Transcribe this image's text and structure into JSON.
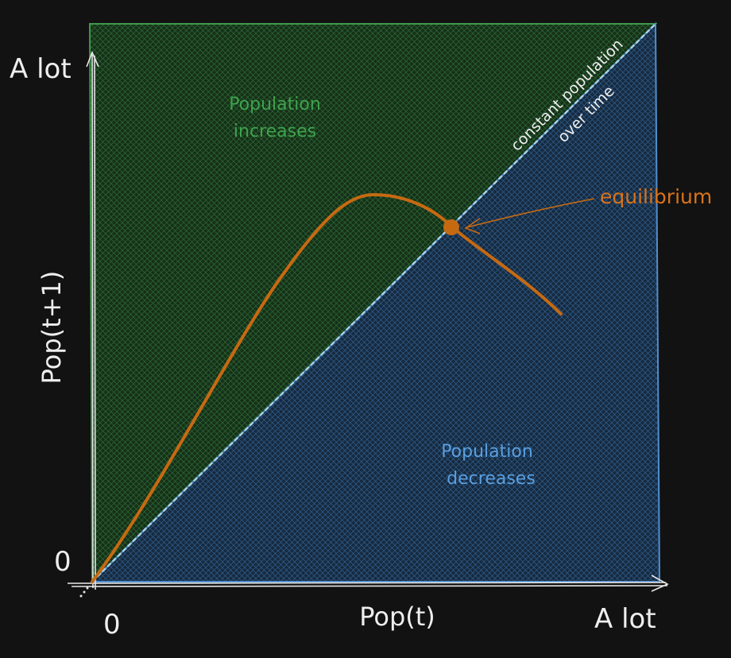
{
  "colors": {
    "background": "#121212",
    "green_region": "#1a3a1f",
    "green_edge": "#3f9a4b",
    "blue_region": "#1b2f47",
    "blue_edge": "#4f8fd0",
    "curve": "#c66a12",
    "diagonal": "#9ec8e0",
    "axis": "#e6e6e6",
    "text_light": "#eeeeee",
    "text_green": "#3ea34d",
    "text_blue": "#5a9fe0",
    "text_orange": "#d9731a"
  },
  "labels": {
    "y_top": "A lot",
    "y_zero": "0",
    "y_axis": "Pop(t+1)",
    "x_zero": "0",
    "x_axis": "Pop(t)",
    "x_right": "A lot",
    "green_line1": "Population",
    "green_line2": "increases",
    "blue_line1": "Population",
    "blue_line2": "decreases",
    "diag_line1": "constant population",
    "diag_line2": "over time",
    "equilibrium": "equilibrium"
  }
}
